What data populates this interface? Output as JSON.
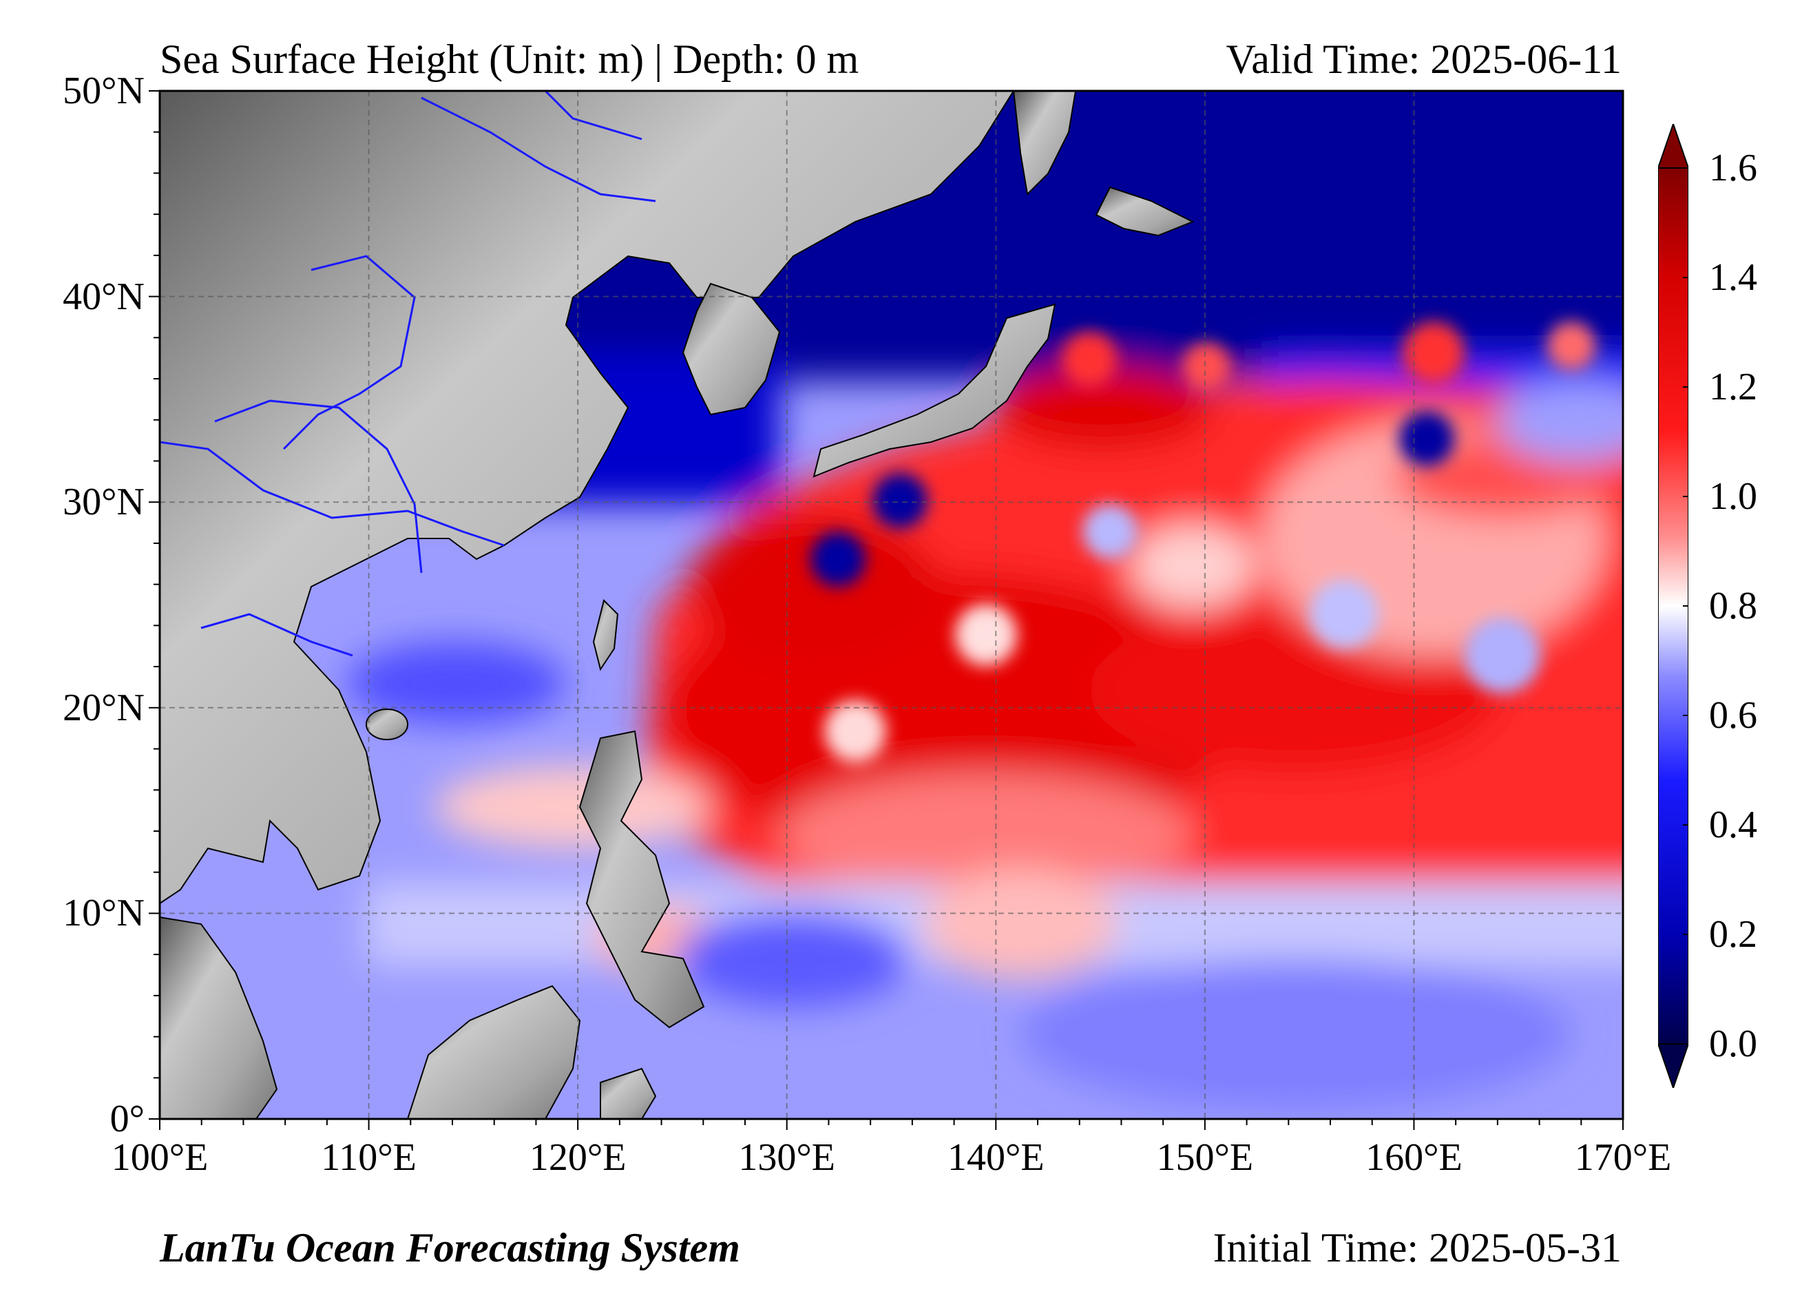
{
  "header": {
    "title": "Sea Surface Height (Unit: m) | Depth: 0 m",
    "valid_time": "Valid Time: 2025-06-11"
  },
  "footer": {
    "system_name": "LanTu Ocean Forecasting System",
    "initial_time": "Initial Time: 2025-05-31"
  },
  "map": {
    "variable": "Sea Surface Height",
    "unit": "m",
    "depth": "0 m",
    "lon_range": [
      100,
      170
    ],
    "lat_range": [
      0,
      50
    ],
    "lat_labels": [
      {
        "value": 50,
        "text": "50°N"
      },
      {
        "value": 40,
        "text": "40°N"
      },
      {
        "value": 30,
        "text": "30°N"
      },
      {
        "value": 20,
        "text": "20°N"
      },
      {
        "value": 10,
        "text": "10°N"
      },
      {
        "value": 0,
        "text": "0°"
      }
    ],
    "lon_labels": [
      {
        "value": 100,
        "text": "100°E"
      },
      {
        "value": 110,
        "text": "110°E"
      },
      {
        "value": 120,
        "text": "120°E"
      },
      {
        "value": 130,
        "text": "130°E"
      },
      {
        "value": 140,
        "text": "140°E"
      },
      {
        "value": 150,
        "text": "150°E"
      },
      {
        "value": 160,
        "text": "160°E"
      },
      {
        "value": 170,
        "text": "170°E"
      }
    ],
    "gridlines": true,
    "land_shading": "grayscale-terrain",
    "river_color": "#1a1aff",
    "coastline_color": "#000000"
  },
  "colorbar": {
    "min": 0.0,
    "max": 1.6,
    "extend": "both",
    "colormap": "seismic",
    "colors": [
      "#00004c",
      "#0000b3",
      "#1a1aff",
      "#8c8cff",
      "#ffffff",
      "#ff8c8c",
      "#ff1a1a",
      "#d40000",
      "#800000"
    ],
    "ticks": [
      {
        "value": 0.0,
        "text": "0.0"
      },
      {
        "value": 0.2,
        "text": "0.2"
      },
      {
        "value": 0.4,
        "text": "0.4"
      },
      {
        "value": 0.6,
        "text": "0.6"
      },
      {
        "value": 0.8,
        "text": "0.8"
      },
      {
        "value": 1.0,
        "text": "1.0"
      },
      {
        "value": 1.2,
        "text": "1.2"
      },
      {
        "value": 1.4,
        "text": "1.4"
      },
      {
        "value": 1.6,
        "text": "1.6"
      }
    ]
  }
}
